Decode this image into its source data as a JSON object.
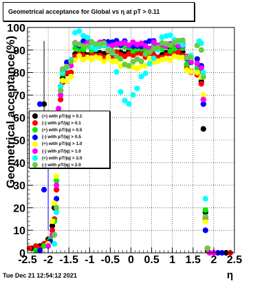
{
  "chart_data": {
    "type": "scatter",
    "title": "Geometrical acceptance for Global vs   η at pT > 0.11",
    "xlabel": "η",
    "ylabel": "Geometrical acceptance(%)",
    "xlim": [
      -2.5,
      2.5
    ],
    "ylim": [
      0,
      100
    ],
    "x_ticks": [
      "-2.5",
      "-2",
      "-1.5",
      "-1",
      "-0.5",
      "0",
      "0.5",
      "1",
      "1.5",
      "2",
      "2.5"
    ],
    "y_ticks": [
      "0",
      "10",
      "20",
      "30",
      "40",
      "50",
      "60",
      "70",
      "80",
      "90",
      "100"
    ],
    "grid": true,
    "legend_position": "left-middle",
    "footer": "Tue Dec 21 12:54:12 2021",
    "series": [
      {
        "name": "(+) with pT/|q| > 0.1",
        "color": "#000000",
        "plateau": 89,
        "dip": 0,
        "edge": [
          [
            -2.4,
            2
          ],
          [
            -2.2,
            3
          ],
          [
            -2.1,
            4
          ],
          [
            -2.0,
            6
          ],
          [
            -1.9,
            12
          ],
          [
            -1.85,
            20
          ],
          [
            -1.8,
            28
          ],
          [
            -1.75,
            55
          ],
          [
            -1.7,
            72
          ],
          [
            1.6,
            80
          ],
          [
            1.7,
            76
          ],
          [
            1.75,
            55
          ],
          [
            1.8,
            18
          ],
          [
            1.85,
            2
          ],
          [
            2.0,
            0
          ],
          [
            2.3,
            0
          ]
        ],
        "outliers": [
          [
            -2.1,
            66
          ]
        ]
      },
      {
        "name": "(-) with pT/|q| > 0.1",
        "color": "#ff0000",
        "plateau": 88,
        "dip": 0,
        "edge": [
          [
            -2.45,
            2
          ],
          [
            -2.3,
            3
          ],
          [
            -2.2,
            2
          ],
          [
            -2.1,
            4
          ],
          [
            -2.0,
            5
          ],
          [
            -1.9,
            10
          ],
          [
            -1.85,
            15
          ],
          [
            -1.8,
            28
          ],
          [
            -1.75,
            50
          ],
          [
            -1.7,
            68
          ],
          [
            1.6,
            79
          ],
          [
            1.7,
            75
          ],
          [
            1.75,
            66
          ],
          [
            1.8,
            15
          ],
          [
            1.85,
            1
          ],
          [
            2.0,
            0
          ],
          [
            2.4,
            0
          ]
        ],
        "outliers": []
      },
      {
        "name": "(+) with pT/|q| > 0.5",
        "color": "#00ee00",
        "plateau": 91,
        "dip": 0,
        "edge": [
          [
            -2.3,
            1
          ],
          [
            -2.1,
            3
          ],
          [
            -1.95,
            6
          ],
          [
            -1.85,
            14
          ],
          [
            -1.8,
            32
          ],
          [
            -1.75,
            60
          ],
          [
            -1.7,
            74
          ],
          [
            1.6,
            82
          ],
          [
            1.7,
            80
          ],
          [
            1.75,
            68
          ],
          [
            1.8,
            19
          ],
          [
            1.85,
            2
          ],
          [
            2.1,
            0
          ]
        ],
        "outliers": []
      },
      {
        "name": "(-) with pT/|q| > 0.5",
        "color": "#0000ff",
        "plateau": 93,
        "dip": 0,
        "edge": [
          [
            -2.2,
            1
          ],
          [
            -2.1,
            28
          ],
          [
            -2.0,
            4
          ],
          [
            -1.95,
            5
          ],
          [
            -1.85,
            8
          ],
          [
            -1.8,
            24
          ],
          [
            -1.75,
            52
          ],
          [
            -1.7,
            70
          ],
          [
            1.6,
            86
          ],
          [
            1.7,
            83
          ],
          [
            1.75,
            66
          ],
          [
            1.8,
            10
          ],
          [
            1.9,
            0
          ],
          [
            2.1,
            0
          ],
          [
            2.2,
            0
          ]
        ],
        "outliers": [
          [
            -2.2,
            66
          ]
        ]
      },
      {
        "name": "(+) with pT/|q| > 1.0",
        "color": "#ffff00",
        "plateau": 87,
        "dip": 5,
        "edge": [
          [
            -2.0,
            4
          ],
          [
            -1.9,
            14
          ],
          [
            -1.85,
            22
          ],
          [
            -1.8,
            34
          ],
          [
            -1.75,
            62
          ],
          [
            1.6,
            80
          ],
          [
            1.7,
            78
          ],
          [
            1.75,
            70
          ],
          [
            1.8,
            14
          ],
          [
            1.9,
            0
          ]
        ],
        "outliers": []
      },
      {
        "name": "(-) with pT/|q| > 1.0",
        "color": "#ff00ff",
        "plateau": 92,
        "dip": 0,
        "edge": [
          [
            -2.0,
            3
          ],
          [
            -1.9,
            8
          ],
          [
            -1.8,
            30
          ],
          [
            -1.75,
            64
          ],
          [
            -1.7,
            70
          ],
          [
            1.6,
            84
          ],
          [
            1.7,
            82
          ],
          [
            1.75,
            68
          ],
          [
            1.8,
            16
          ],
          [
            1.9,
            0
          ],
          [
            2.0,
            0
          ]
        ],
        "outliers": []
      },
      {
        "name": "(+) with pT/|q| > 2.0",
        "color": "#00ffff",
        "plateau": 95,
        "dip": 27,
        "edge": [
          [
            -1.85,
            4
          ],
          [
            -1.8,
            18
          ],
          [
            -1.75,
            55
          ],
          [
            -1.7,
            74
          ],
          [
            1.65,
            94
          ],
          [
            1.7,
            93
          ],
          [
            1.75,
            80
          ],
          [
            1.8,
            24
          ],
          [
            1.85,
            2
          ]
        ],
        "outliers": []
      },
      {
        "name": "(-) with pT/|q| > 2.0",
        "color": "#66cc44",
        "plateau": 93,
        "dip": 9,
        "edge": [
          [
            -1.85,
            8
          ],
          [
            -1.8,
            20
          ],
          [
            -1.75,
            52
          ],
          [
            -1.7,
            72
          ],
          [
            1.6,
            92
          ],
          [
            1.7,
            90
          ],
          [
            1.75,
            78
          ],
          [
            1.8,
            16
          ],
          [
            1.85,
            2
          ]
        ],
        "outliers": []
      }
    ]
  }
}
